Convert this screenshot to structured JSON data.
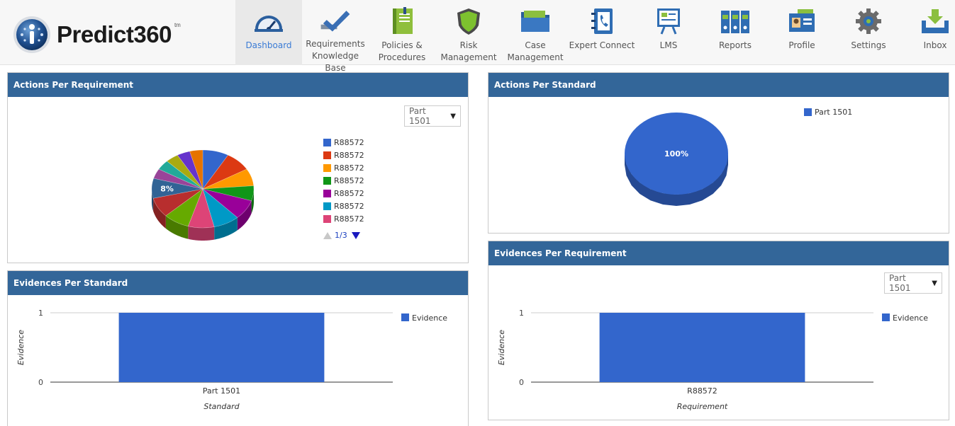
{
  "app": {
    "name": "Predict360",
    "trademark": "tm"
  },
  "nav": [
    {
      "id": "dashboard",
      "label": "Dashboard",
      "icon": "speedometer-icon",
      "active": true
    },
    {
      "id": "requirements",
      "label": "Requirements\nKnowledge Base",
      "icon": "checkmark-icon"
    },
    {
      "id": "policies",
      "label": "Policies &\nProcedures",
      "icon": "notebook-icon"
    },
    {
      "id": "risk",
      "label": "Risk\nManagement",
      "icon": "shield-icon"
    },
    {
      "id": "case",
      "label": "Case\nManagement",
      "icon": "folder-icon"
    },
    {
      "id": "expert",
      "label": "Expert Connect",
      "icon": "phone-book-icon"
    },
    {
      "id": "lms",
      "label": "LMS",
      "icon": "presentation-board-icon"
    },
    {
      "id": "reports",
      "label": "Reports",
      "icon": "binders-icon"
    },
    {
      "id": "profile",
      "label": "Profile",
      "icon": "id-card-icon"
    },
    {
      "id": "settings",
      "label": "Settings",
      "icon": "gear-icon"
    },
    {
      "id": "inbox",
      "label": "Inbox",
      "icon": "inbox-tray-icon"
    }
  ],
  "colors": {
    "panel_header": "#336699",
    "bar": "#3366cc",
    "active_nav": "#3a7bd5"
  },
  "panels": {
    "actions_per_requirement": {
      "title": "Actions Per Requirement",
      "select_value": "Part 1501",
      "pager": "1/3",
      "legend": [
        {
          "label": "R88572",
          "color": "#3366cc"
        },
        {
          "label": "R88572",
          "color": "#dc3912"
        },
        {
          "label": "R88572",
          "color": "#ff9900"
        },
        {
          "label": "R88572",
          "color": "#109618"
        },
        {
          "label": "R88572",
          "color": "#990099"
        },
        {
          "label": "R88572",
          "color": "#0099c6"
        },
        {
          "label": "R88572",
          "color": "#dd4477"
        }
      ],
      "chart_data": {
        "type": "pie",
        "slice_colors": [
          "#3366cc",
          "#dc3912",
          "#ff9900",
          "#109618",
          "#990099",
          "#0099c6",
          "#dd4477",
          "#66aa00",
          "#b82e2e",
          "#316395",
          "#994499",
          "#22aa99",
          "#aaaa11",
          "#6633cc",
          "#e67300"
        ],
        "values": [
          8,
          8,
          7,
          6,
          8,
          8,
          8,
          8,
          8,
          8,
          4,
          4,
          4,
          4,
          4
        ],
        "data_labels": [
          "",
          "",
          "",
          "",
          "",
          "",
          "",
          "",
          "",
          "8%",
          "",
          "",
          "",
          "",
          ""
        ]
      }
    },
    "actions_per_standard": {
      "title": "Actions Per Standard",
      "chart_data": {
        "type": "pie",
        "categories": [
          "Part 1501"
        ],
        "values": [
          100
        ],
        "colors": [
          "#3366cc"
        ],
        "data_labels": [
          "100%"
        ]
      }
    },
    "evidences_per_standard": {
      "title": "Evidences Per Standard",
      "chart_data": {
        "type": "bar",
        "categories": [
          "Part 1501"
        ],
        "series": [
          {
            "name": "Evidence",
            "values": [
              1
            ]
          }
        ],
        "xlabel": "Standard",
        "ylabel": "Evidence",
        "ylim": [
          0,
          1
        ],
        "yticks": [
          "0",
          "1"
        ],
        "legend": "right",
        "grid": true
      }
    },
    "evidences_per_requirement": {
      "title": "Evidences Per Requirement",
      "select_value": "Part 1501",
      "chart_data": {
        "type": "bar",
        "categories": [
          "R88572"
        ],
        "series": [
          {
            "name": "Evidence",
            "values": [
              1
            ]
          }
        ],
        "xlabel": "Requirement",
        "ylabel": "Evidence",
        "ylim": [
          0,
          1
        ],
        "yticks": [
          "0",
          "1"
        ],
        "legend": "right",
        "grid": true
      }
    }
  }
}
